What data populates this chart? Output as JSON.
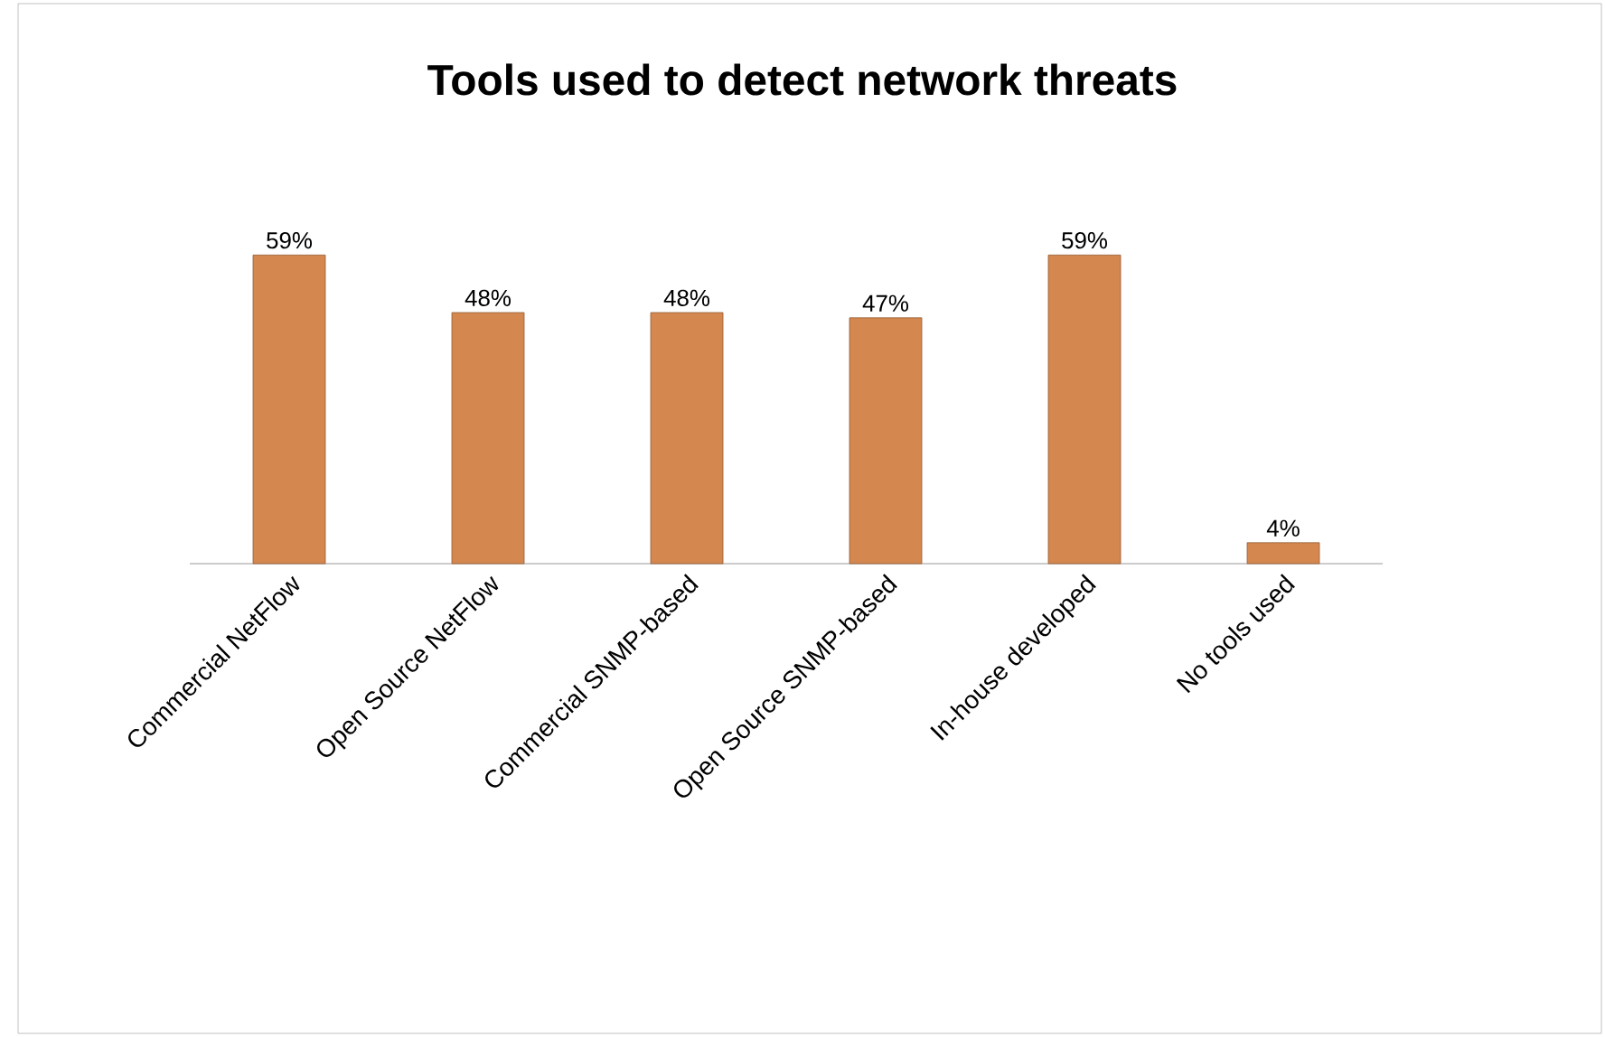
{
  "chart_data": {
    "type": "bar",
    "title": "Tools used to detect network threats",
    "categories": [
      "Commercial NetFlow",
      "Open Source NetFlow",
      "Commercial SNMP-based",
      "Open Source SNMP-based",
      "In-house developed",
      "No tools used"
    ],
    "values": [
      59,
      48,
      48,
      47,
      59,
      4
    ],
    "value_labels": [
      "59%",
      "48%",
      "48%",
      "47%",
      "59%",
      "4%"
    ],
    "color": "#d4874e"
  }
}
